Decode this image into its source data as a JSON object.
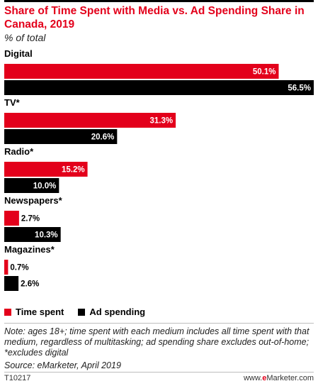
{
  "chart_data": {
    "type": "bar",
    "orientation": "horizontal",
    "title": "Share of Time Spent with Media vs. Ad Spending Share in Canada, 2019",
    "subtitle": "% of total",
    "categories": [
      "Digital",
      "TV*",
      "Radio*",
      "Newspapers*",
      "Magazines*"
    ],
    "series": [
      {
        "name": "Time spent",
        "color": "#e3001b",
        "values": [
          50.1,
          31.3,
          15.2,
          2.7,
          0.7
        ],
        "labels": [
          "50.1%",
          "31.3%",
          "15.2%",
          "2.7%",
          "0.7%"
        ]
      },
      {
        "name": "Ad spending",
        "color": "#000000",
        "values": [
          56.5,
          20.6,
          10.0,
          10.3,
          2.6
        ],
        "labels": [
          "56.5%",
          "20.6%",
          "10.0%",
          "10.3%",
          "2.6%"
        ]
      }
    ],
    "xlim": [
      0,
      56.5
    ],
    "grid": false,
    "legend_position": "bottom-left"
  },
  "note": "Note: ages 18+; time spent with each medium includes all time spent with that medium, regardless of multitasking; ad spending share excludes out-of-home; *excludes digital",
  "source": "Source: eMarketer, April 2019",
  "footer": {
    "id": "T10217",
    "site_prefix": "www.",
    "site_brand": "e",
    "site_suffix": "Marketer.com"
  }
}
